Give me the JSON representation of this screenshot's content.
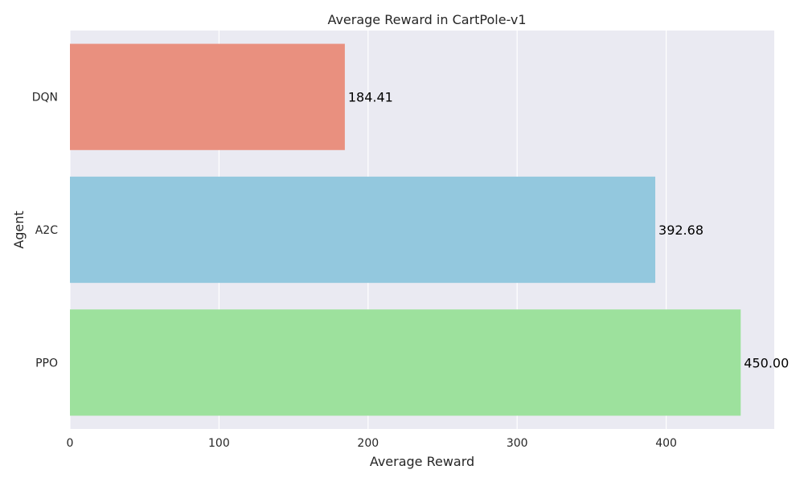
{
  "chart_data": {
    "type": "bar",
    "orientation": "horizontal",
    "title": "Average Reward in CartPole-v1",
    "xlabel": "Average Reward",
    "ylabel": "Agent",
    "categories": [
      "DQN",
      "A2C",
      "PPO"
    ],
    "values": [
      184.41,
      392.68,
      450.0
    ],
    "value_labels": [
      "184.41",
      "392.68",
      "450.00"
    ],
    "colors": [
      "#e9907f",
      "#93c8de",
      "#9de19d"
    ],
    "xlim": [
      0,
      472.5
    ],
    "xticks": [
      0,
      100,
      200,
      300,
      400
    ],
    "xtick_labels": [
      "0",
      "100",
      "200",
      "300",
      "400"
    ],
    "grid": true,
    "style": {
      "background": "#eaeaf2",
      "grid_color": "#ffffff"
    }
  }
}
